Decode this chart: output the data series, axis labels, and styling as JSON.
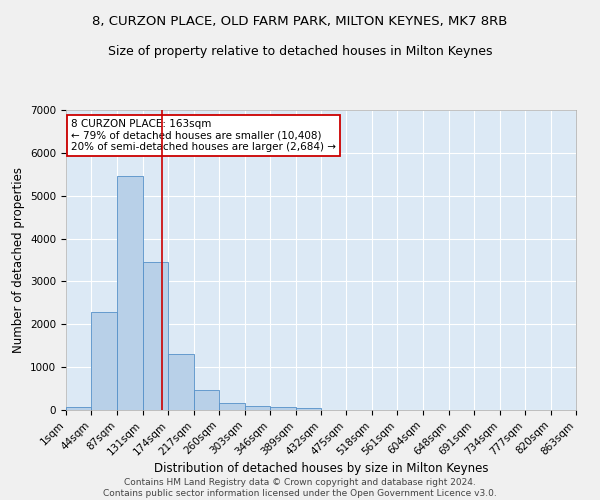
{
  "title1": "8, CURZON PLACE, OLD FARM PARK, MILTON KEYNES, MK7 8RB",
  "title2": "Size of property relative to detached houses in Milton Keynes",
  "xlabel": "Distribution of detached houses by size in Milton Keynes",
  "ylabel": "Number of detached properties",
  "bar_color": "#b8d0e8",
  "bar_edge_color": "#5590c8",
  "background_color": "#dce9f5",
  "grid_color": "#ffffff",
  "annotation_line_color": "#cc0000",
  "annotation_box_color": "#cc0000",
  "annotation_text": "8 CURZON PLACE: 163sqm\n← 79% of detached houses are smaller (10,408)\n20% of semi-detached houses are larger (2,684) →",
  "property_size": 163,
  "bin_edges": [
    1,
    44,
    87,
    131,
    174,
    217,
    260,
    303,
    346,
    389,
    432,
    475,
    518,
    561,
    604,
    648,
    691,
    734,
    777,
    820,
    863
  ],
  "counts": [
    75,
    2280,
    5470,
    3450,
    1310,
    470,
    175,
    100,
    80,
    50,
    0,
    0,
    0,
    0,
    0,
    0,
    0,
    0,
    0,
    0
  ],
  "ylim": [
    0,
    7000
  ],
  "yticks": [
    0,
    1000,
    2000,
    3000,
    4000,
    5000,
    6000,
    7000
  ],
  "footer": "Contains HM Land Registry data © Crown copyright and database right 2024.\nContains public sector information licensed under the Open Government Licence v3.0.",
  "title_fontsize": 9.5,
  "subtitle_fontsize": 9,
  "axis_label_fontsize": 8.5,
  "tick_fontsize": 7.5,
  "footer_fontsize": 6.5
}
